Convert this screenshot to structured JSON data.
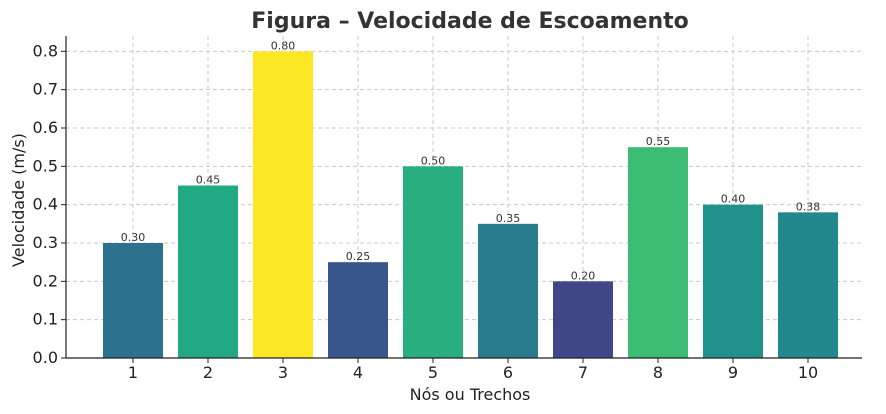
{
  "chart_data": {
    "type": "bar",
    "title": "Figura – Velocidade de Escoamento",
    "xlabel": "Nós ou Trechos",
    "ylabel": "Velocidade (m/s)",
    "categories": [
      "1",
      "2",
      "3",
      "4",
      "5",
      "6",
      "7",
      "8",
      "9",
      "10"
    ],
    "values": [
      0.3,
      0.45,
      0.8,
      0.25,
      0.5,
      0.35,
      0.2,
      0.55,
      0.4,
      0.38
    ],
    "value_labels": [
      "0.30",
      "0.45",
      "0.80",
      "0.25",
      "0.50",
      "0.35",
      "0.20",
      "0.55",
      "0.40",
      "0.38"
    ],
    "colors": [
      "#2c728e",
      "#22a884",
      "#fde725",
      "#39568c",
      "#29af7f",
      "#287c8e",
      "#404688",
      "#3dbc74",
      "#21918c",
      "#23888e"
    ],
    "ylim": [
      0,
      0.84
    ],
    "yticks": [
      "0.0",
      "0.1",
      "0.2",
      "0.3",
      "0.4",
      "0.5",
      "0.6",
      "0.7",
      "0.8"
    ],
    "ytick_values": [
      0,
      0.1,
      0.2,
      0.3,
      0.4,
      0.5,
      0.6,
      0.7,
      0.8
    ],
    "grid": true,
    "legend": "none"
  }
}
